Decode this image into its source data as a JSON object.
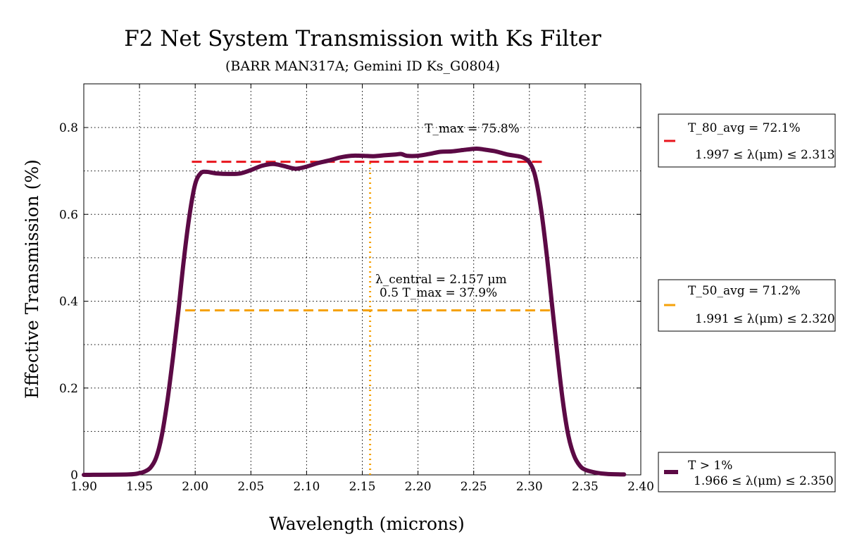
{
  "chart_data": {
    "type": "line",
    "title": "F2 Net System Transmission with Ks Filter",
    "subtitle": "(BARR MAN317A; Gemini ID Ks_G0804)",
    "xlabel": "Wavelength (microns)",
    "ylabel": "Effective Transmission (%)",
    "xlim": [
      1.9,
      2.4
    ],
    "ylim": [
      0,
      0.9
    ],
    "x_ticks": [
      "1.90",
      "1.95",
      "2.00",
      "2.05",
      "2.10",
      "2.15",
      "2.20",
      "2.25",
      "2.30",
      "2.35",
      "2.40"
    ],
    "y_ticks": [
      "0",
      "0.2",
      "0.4",
      "0.6",
      "0.8"
    ],
    "grid": true,
    "series": [
      {
        "name": "T > 1%",
        "color": "#5c0a45",
        "x": [
          1.9,
          1.94,
          1.95,
          1.955,
          1.96,
          1.965,
          1.97,
          1.975,
          1.98,
          1.985,
          1.99,
          1.995,
          2.0,
          2.005,
          2.01,
          2.015,
          2.02,
          2.03,
          2.04,
          2.05,
          2.06,
          2.07,
          2.08,
          2.09,
          2.1,
          2.11,
          2.12,
          2.13,
          2.14,
          2.15,
          2.16,
          2.17,
          2.18,
          2.185,
          2.19,
          2.2,
          2.21,
          2.22,
          2.23,
          2.24,
          2.25,
          2.255,
          2.26,
          2.27,
          2.28,
          2.29,
          2.295,
          2.3,
          2.305,
          2.31,
          2.315,
          2.32,
          2.325,
          2.33,
          2.335,
          2.34,
          2.345,
          2.35,
          2.36,
          2.37,
          2.385
        ],
        "y": [
          0.0,
          0.001,
          0.004,
          0.008,
          0.017,
          0.04,
          0.09,
          0.17,
          0.27,
          0.38,
          0.5,
          0.6,
          0.67,
          0.695,
          0.698,
          0.696,
          0.694,
          0.693,
          0.694,
          0.702,
          0.712,
          0.716,
          0.711,
          0.705,
          0.71,
          0.718,
          0.724,
          0.731,
          0.735,
          0.735,
          0.734,
          0.736,
          0.738,
          0.739,
          0.735,
          0.735,
          0.739,
          0.744,
          0.745,
          0.748,
          0.751,
          0.751,
          0.749,
          0.745,
          0.738,
          0.734,
          0.73,
          0.72,
          0.69,
          0.62,
          0.52,
          0.4,
          0.28,
          0.17,
          0.09,
          0.045,
          0.022,
          0.012,
          0.005,
          0.002,
          0.001
        ]
      }
    ],
    "reference_lines": [
      {
        "name": "T_80_avg",
        "y": 0.721,
        "x_range": [
          1.997,
          2.313
        ],
        "color": "#e8141c",
        "style": "dashed"
      },
      {
        "name": "T_50_avg",
        "y": 0.379,
        "x_range": [
          1.991,
          2.32
        ],
        "color": "#f5a20a",
        "style": "dashed"
      },
      {
        "name": "lambda_central",
        "x": 2.157,
        "y_range": [
          0,
          0.721
        ],
        "color": "#f5a20a",
        "style": "dotted"
      }
    ],
    "annotations": {
      "tmax": "T_max = 75.8%",
      "lambda_central": "λ_central = 2.157 μm",
      "half_tmax": "0.5 T_max = 37.9%"
    },
    "legend": [
      {
        "key": "t80",
        "line1": "T_80_avg = 72.1%",
        "line2": "1.997 ≤ λ(μm) ≤ 2.313",
        "color": "#e8141c",
        "style": "dashed"
      },
      {
        "key": "t50",
        "line1": "T_50_avg = 71.2%",
        "line2": "1.991 ≤ λ(μm) ≤ 2.320",
        "color": "#f5a20a",
        "style": "dashed"
      },
      {
        "key": "t1",
        "line1": "T > 1%",
        "line2": "1.966 ≤ λ(μm) ≤ 2.350",
        "color": "#5c0a45",
        "style": "solid"
      }
    ]
  }
}
